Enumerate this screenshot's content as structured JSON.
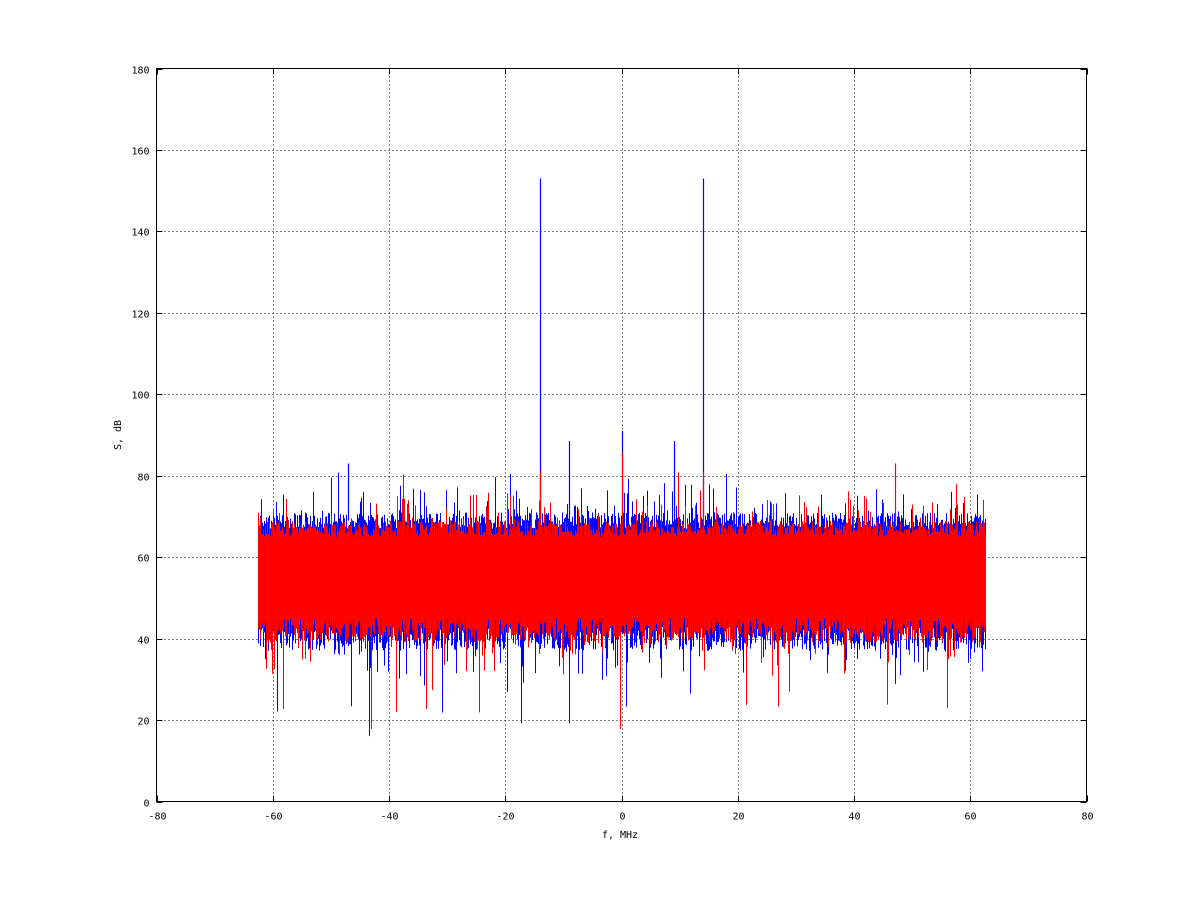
{
  "chart_data": {
    "type": "line",
    "title": "",
    "xlabel": "f, MHz",
    "ylabel": "S, dB",
    "xlim": [
      -80,
      80
    ],
    "ylim": [
      0,
      180
    ],
    "xticks": [
      "-80",
      "-60",
      "-40",
      "-20",
      "0",
      "20",
      "40",
      "60",
      "80"
    ],
    "yticks": [
      "0",
      "20",
      "40",
      "60",
      "80",
      "100",
      "120",
      "140",
      "160",
      "180"
    ],
    "grid": true,
    "legend": "none",
    "series": [
      {
        "color": "#0000ff",
        "x_range": [
          -62.5,
          62.5
        ],
        "noise_floor": {
          "typical_low": 40,
          "typical_high": 69,
          "min": 16,
          "max": 83
        },
        "peaks": [
          {
            "x": -14.0,
            "y": 153
          },
          {
            "x": -9.0,
            "y": 88.5
          },
          {
            "x": 0.0,
            "y": 91
          },
          {
            "x": 9.0,
            "y": 88.5
          },
          {
            "x": 14.0,
            "y": 153
          },
          {
            "x": -47.0,
            "y": 83
          }
        ]
      },
      {
        "color": "#ff0000",
        "x_range": [
          -62.5,
          62.5
        ],
        "noise_floor": {
          "typical_low": 42,
          "typical_high": 67,
          "min": 16,
          "max": 83
        },
        "peaks": [
          {
            "x": -14.0,
            "y": 81
          },
          {
            "x": 0.0,
            "y": 85.5
          },
          {
            "x": 14.0,
            "y": 81
          },
          {
            "x": 47.0,
            "y": 83
          }
        ]
      }
    ]
  }
}
